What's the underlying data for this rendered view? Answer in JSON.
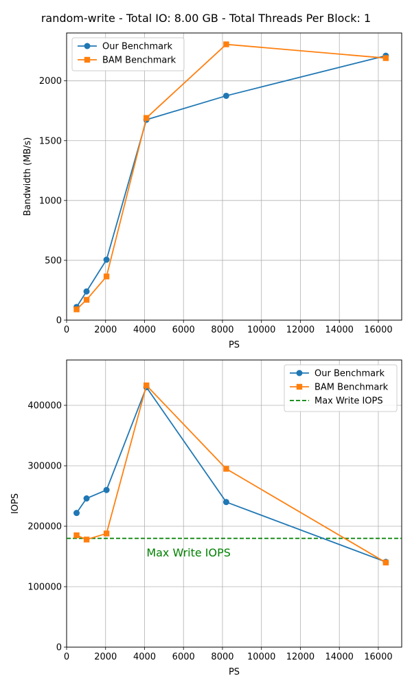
{
  "figure": {
    "title": "random-write - Total IO: 8.00 GB - Total Threads Per Block: 1"
  },
  "chart_data": [
    {
      "type": "line",
      "xlabel": "PS",
      "ylabel": "Bandwidth (MB/s)",
      "xlim": [
        0,
        17200
      ],
      "ylim": [
        0,
        2400
      ],
      "xticks": [
        0,
        2000,
        4000,
        6000,
        8000,
        10000,
        12000,
        14000,
        16000
      ],
      "yticks": [
        0,
        500,
        1000,
        1500,
        2000
      ],
      "grid": true,
      "legend": "top-left",
      "x": [
        512,
        1024,
        2048,
        4096,
        8192,
        16384
      ],
      "series": [
        {
          "name": "Our Benchmark",
          "color": "#1f77b4",
          "marker": "circle",
          "values": [
            110,
            240,
            505,
            1675,
            1875,
            2210
          ]
        },
        {
          "name": "BAM Benchmark",
          "color": "#ff7f0e",
          "marker": "square",
          "values": [
            90,
            170,
            365,
            1690,
            2305,
            2190
          ]
        }
      ]
    },
    {
      "type": "line",
      "xlabel": "PS",
      "ylabel": "IOPS",
      "xlim": [
        0,
        17200
      ],
      "ylim": [
        0,
        475000
      ],
      "xticks": [
        0,
        2000,
        4000,
        6000,
        8000,
        10000,
        12000,
        14000,
        16000
      ],
      "yticks": [
        0,
        100000,
        200000,
        300000,
        400000
      ],
      "grid": true,
      "legend": "top-right",
      "x": [
        512,
        1024,
        2048,
        4096,
        8192,
        16384
      ],
      "series": [
        {
          "name": "Our Benchmark",
          "color": "#1f77b4",
          "marker": "circle",
          "values": [
            222000,
            246000,
            260000,
            430000,
            240000,
            141000
          ]
        },
        {
          "name": "BAM Benchmark",
          "color": "#ff7f0e",
          "marker": "square",
          "values": [
            185000,
            178000,
            188000,
            433000,
            295000,
            140000
          ]
        }
      ],
      "hline": {
        "name": "Max Write IOPS",
        "value": 180000,
        "color": "#008000",
        "style": "dashed"
      },
      "annotation": {
        "text": "Max Write IOPS",
        "x": 4100,
        "y": 150000,
        "color": "#008000"
      }
    }
  ]
}
